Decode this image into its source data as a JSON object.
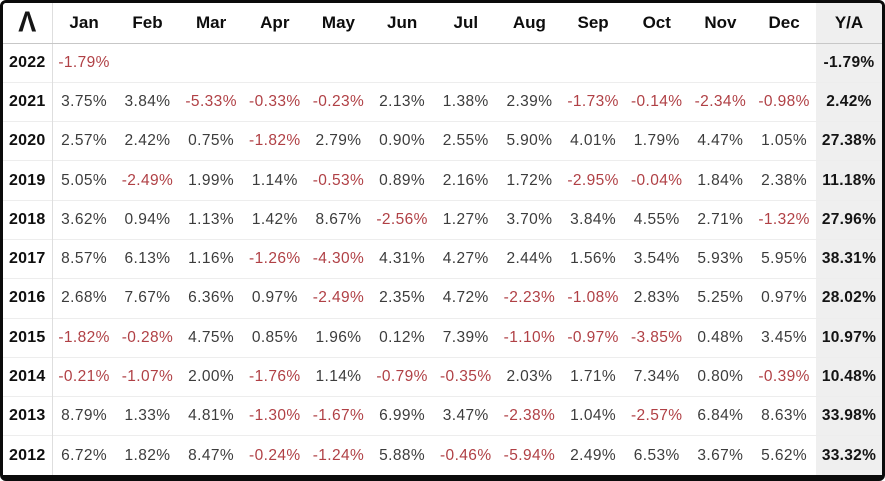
{
  "colors": {
    "negative_value": "#b04045",
    "positive_value": "#3c3c3c",
    "ya_column_background": "#efefef",
    "outer_border": "#0b0b0b",
    "row_divider": "#ededed"
  },
  "logo": {
    "icon": "lambda-logo-icon",
    "glyph": "Λ"
  },
  "table": {
    "month_columns": [
      "Jan",
      "Feb",
      "Mar",
      "Apr",
      "May",
      "Jun",
      "Jul",
      "Aug",
      "Sep",
      "Oct",
      "Nov",
      "Dec"
    ],
    "ya_label": "Y/A",
    "rows": [
      {
        "year": "2022",
        "values": [
          "-1.79%",
          "",
          "",
          "",
          "",
          "",
          "",
          "",
          "",
          "",
          "",
          ""
        ],
        "ya": "-1.79%"
      },
      {
        "year": "2021",
        "values": [
          "3.75%",
          "3.84%",
          "-5.33%",
          "-0.33%",
          "-0.23%",
          "2.13%",
          "1.38%",
          "2.39%",
          "-1.73%",
          "-0.14%",
          "-2.34%",
          "-0.98%"
        ],
        "ya": "2.42%"
      },
      {
        "year": "2020",
        "values": [
          "2.57%",
          "2.42%",
          "0.75%",
          "-1.82%",
          "2.79%",
          "0.90%",
          "2.55%",
          "5.90%",
          "4.01%",
          "1.79%",
          "4.47%",
          "1.05%"
        ],
        "ya": "27.38%"
      },
      {
        "year": "2019",
        "values": [
          "5.05%",
          "-2.49%",
          "1.99%",
          "1.14%",
          "-0.53%",
          "0.89%",
          "2.16%",
          "1.72%",
          "-2.95%",
          "-0.04%",
          "1.84%",
          "2.38%"
        ],
        "ya": "11.18%"
      },
      {
        "year": "2018",
        "values": [
          "3.62%",
          "0.94%",
          "1.13%",
          "1.42%",
          "8.67%",
          "-2.56%",
          "1.27%",
          "3.70%",
          "3.84%",
          "4.55%",
          "2.71%",
          "-1.32%"
        ],
        "ya": "27.96%"
      },
      {
        "year": "2017",
        "values": [
          "8.57%",
          "6.13%",
          "1.16%",
          "-1.26%",
          "-4.30%",
          "4.31%",
          "4.27%",
          "2.44%",
          "1.56%",
          "3.54%",
          "5.93%",
          "5.95%"
        ],
        "ya": "38.31%"
      },
      {
        "year": "2016",
        "values": [
          "2.68%",
          "7.67%",
          "6.36%",
          "0.97%",
          "-2.49%",
          "2.35%",
          "4.72%",
          "-2.23%",
          "-1.08%",
          "2.83%",
          "5.25%",
          "0.97%"
        ],
        "ya": "28.02%"
      },
      {
        "year": "2015",
        "values": [
          "-1.82%",
          "-0.28%",
          "4.75%",
          "0.85%",
          "1.96%",
          "0.12%",
          "7.39%",
          "-1.10%",
          "-0.97%",
          "-3.85%",
          "0.48%",
          "3.45%"
        ],
        "ya": "10.97%"
      },
      {
        "year": "2014",
        "values": [
          "-0.21%",
          "-1.07%",
          "2.00%",
          "-1.76%",
          "1.14%",
          "-0.79%",
          "-0.35%",
          "2.03%",
          "1.71%",
          "7.34%",
          "0.80%",
          "-0.39%"
        ],
        "ya": "10.48%"
      },
      {
        "year": "2013",
        "values": [
          "8.79%",
          "1.33%",
          "4.81%",
          "-1.30%",
          "-1.67%",
          "6.99%",
          "3.47%",
          "-2.38%",
          "1.04%",
          "-2.57%",
          "6.84%",
          "8.63%"
        ],
        "ya": "33.98%"
      },
      {
        "year": "2012",
        "values": [
          "6.72%",
          "1.82%",
          "8.47%",
          "-0.24%",
          "-1.24%",
          "5.88%",
          "-0.46%",
          "-5.94%",
          "2.49%",
          "6.53%",
          "3.67%",
          "5.62%"
        ],
        "ya": "33.32%"
      }
    ]
  }
}
